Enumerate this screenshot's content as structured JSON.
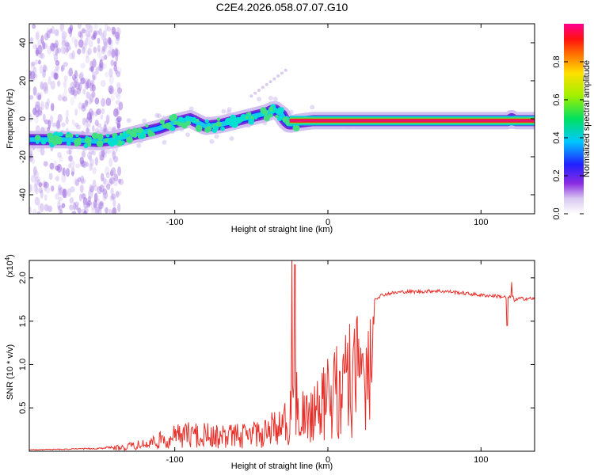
{
  "chart_data": [
    {
      "type": "heatmap",
      "title": "C2E4.2026.058.07.07.G10",
      "xlabel": "Height of straight line (km)",
      "ylabel": "Frequency (Hz)",
      "xlim": [
        -195,
        135
      ],
      "ylim": [
        -50,
        50
      ],
      "x_ticks": [
        -100,
        0,
        100
      ],
      "x_tick_labels": [
        "-100",
        "0",
        "100"
      ],
      "y_ticks": [
        -40,
        -20,
        0,
        20,
        40
      ],
      "y_tick_labels": [
        "-40",
        "-20",
        "0",
        "20",
        "40"
      ],
      "ridge": {
        "x": [
          -195,
          -170,
          -150,
          -140,
          -130,
          -120,
          -110,
          -100,
          -90,
          -80,
          -70,
          -60,
          -50,
          -40,
          -35,
          -30,
          -28,
          -25,
          -20,
          -10,
          0,
          10,
          30,
          60,
          100,
          118,
          120,
          122,
          135
        ],
        "freq": [
          -11,
          -11,
          -12,
          -11,
          -9,
          -7,
          -5,
          -2,
          0,
          -4,
          -3,
          -1,
          1,
          3,
          5,
          2,
          -1,
          -3,
          -2,
          -1,
          -1,
          -1,
          -1,
          -1,
          -1,
          -1,
          0,
          -1,
          -1
        ]
      },
      "colorbar": {
        "label": "Normalized spectral amplitude",
        "ticks": [
          0.0,
          0.2,
          0.4,
          0.6,
          0.8
        ],
        "tick_labels": [
          "0.0",
          "0.2",
          "0.4",
          "0.6",
          "0.8"
        ],
        "range": [
          0,
          1
        ]
      }
    },
    {
      "type": "line",
      "xlabel": "Height of straight line (km)",
      "ylabel": "SNR (10 * v/v)",
      "exponent_label": "(x10",
      "exponent_power": "4",
      "exponent_close": ")",
      "xlim": [
        -195,
        135
      ],
      "ylim": [
        0,
        2.2
      ],
      "x_ticks": [
        -100,
        0,
        100
      ],
      "x_tick_labels": [
        "-100",
        "0",
        "100"
      ],
      "y_ticks": [
        0.5,
        1.0,
        1.5,
        2.0
      ],
      "y_tick_labels": [
        "0.5",
        "1.0",
        "1.5",
        "2.0"
      ],
      "series": [
        {
          "name": "SNR",
          "color": "#e8302a",
          "envelope_x": [
            -195,
            -170,
            -150,
            -140,
            -130,
            -120,
            -110,
            -100,
            -90,
            -80,
            -70,
            -60,
            -50,
            -40,
            -30,
            -25,
            -22,
            -20,
            -15,
            -10,
            -5,
            0,
            5,
            10,
            15,
            20,
            25,
            30,
            35,
            40,
            50,
            60,
            70,
            80,
            90,
            100,
            110,
            115,
            118,
            120,
            122,
            125,
            130,
            135
          ],
          "envelope_y": [
            0.02,
            0.03,
            0.04,
            0.06,
            0.1,
            0.14,
            0.22,
            0.3,
            0.35,
            0.33,
            0.3,
            0.32,
            0.35,
            0.4,
            0.55,
            0.75,
            1.0,
            0.9,
            0.75,
            0.7,
            0.9,
            1.15,
            1.25,
            1.35,
            1.5,
            1.6,
            1.65,
            1.75,
            1.8,
            1.82,
            1.84,
            1.84,
            1.85,
            1.84,
            1.82,
            1.8,
            1.79,
            1.78,
            1.76,
            1.8,
            1.74,
            1.76,
            1.76,
            1.76
          ],
          "spikes": [
            {
              "x": -23.5,
              "y": 2.2
            },
            {
              "x": -21.5,
              "y": 2.15
            },
            {
              "x": 120,
              "y": 1.95
            },
            {
              "x": 117,
              "y": 1.45
            }
          ]
        }
      ]
    }
  ]
}
